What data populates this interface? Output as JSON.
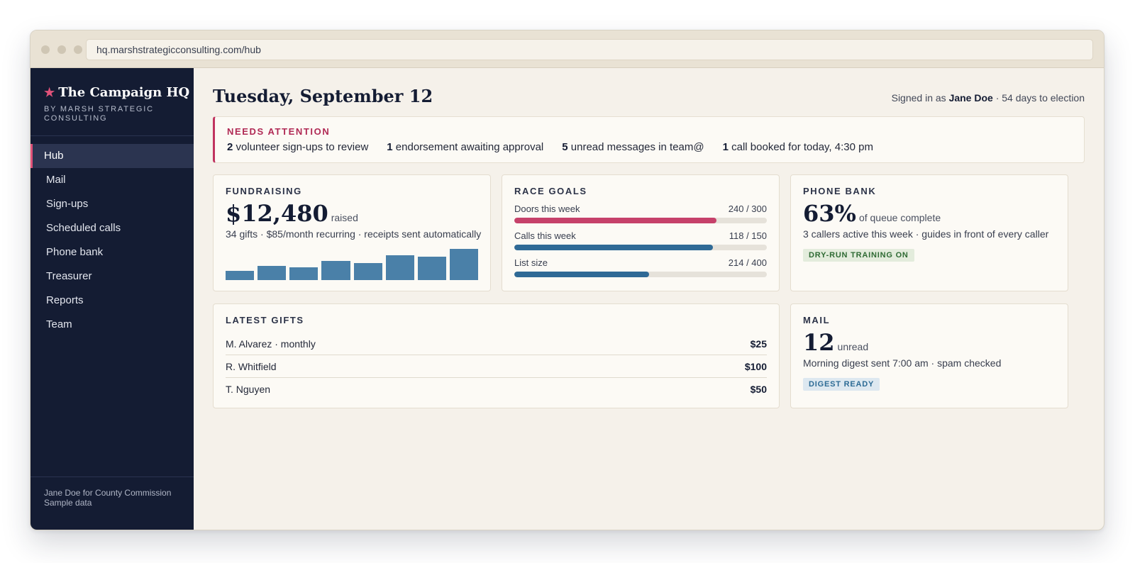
{
  "browser": {
    "url": "hq.marshstrategicconsulting.com/hub"
  },
  "sidebar": {
    "brand_star": "★",
    "brand_title": "The Campaign HQ",
    "brand_sub": "BY MARSH STRATEGIC CONSULTING",
    "items": [
      {
        "label": "Hub",
        "active": true
      },
      {
        "label": "Mail"
      },
      {
        "label": "Sign-ups"
      },
      {
        "label": "Scheduled calls"
      },
      {
        "label": "Phone bank"
      },
      {
        "label": "Treasurer"
      },
      {
        "label": "Reports"
      },
      {
        "label": "Team"
      }
    ],
    "footer_line1": "Jane Doe for County Commission",
    "footer_line2": "Sample data"
  },
  "header": {
    "title": "Tuesday, September 12",
    "signed_prefix": "Signed in as",
    "user": "Jane Doe",
    "signed_suffix": "· 54 days to election"
  },
  "attention": {
    "label": "NEEDS ATTENTION",
    "items": [
      {
        "count": "2",
        "text": "volunteer sign-ups to review"
      },
      {
        "count": "1",
        "text": "endorsement awaiting approval"
      },
      {
        "count": "5",
        "text": "unread messages in team@"
      },
      {
        "count": "1",
        "text": "call booked for today, 4:30 pm"
      }
    ]
  },
  "fundraising": {
    "label": "FUNDRAISING",
    "amount": "$12,480",
    "suffix": "raised",
    "sub": "34 gifts · $85/month recurring · receipts sent automatically",
    "bar_color": "#4a80a8",
    "bars": [
      0.3,
      0.45,
      0.4,
      0.62,
      0.55,
      0.8,
      0.75,
      1.0
    ]
  },
  "race_goals": {
    "label": "RACE GOALS",
    "goals": [
      {
        "label": "Doors this week",
        "value": "240 / 300",
        "fraction": 0.8,
        "color": "#c6416a"
      },
      {
        "label": "Calls this week",
        "value": "118 / 150",
        "fraction": 0.787,
        "color": "#2f6a96"
      },
      {
        "label": "List size",
        "value": "214 / 400",
        "fraction": 0.535,
        "color": "#2f6a96"
      }
    ]
  },
  "phone_bank": {
    "label": "PHONE BANK",
    "percent": "63%",
    "suffix": "of queue complete",
    "sub": "3 callers active this week · guides in front of every caller",
    "badge": "DRY-RUN TRAINING ON"
  },
  "latest_gifts": {
    "label": "LATEST GIFTS",
    "rows": [
      {
        "name": "M. Alvarez · monthly",
        "amount": "$25"
      },
      {
        "name": "R. Whitfield",
        "amount": "$100"
      },
      {
        "name": "T. Nguyen",
        "amount": "$50"
      }
    ]
  },
  "mail": {
    "label": "MAIL",
    "count": "12",
    "suffix": "unread",
    "sub": "Morning digest sent 7:00 am · spam checked",
    "badge": "DIGEST READY"
  }
}
